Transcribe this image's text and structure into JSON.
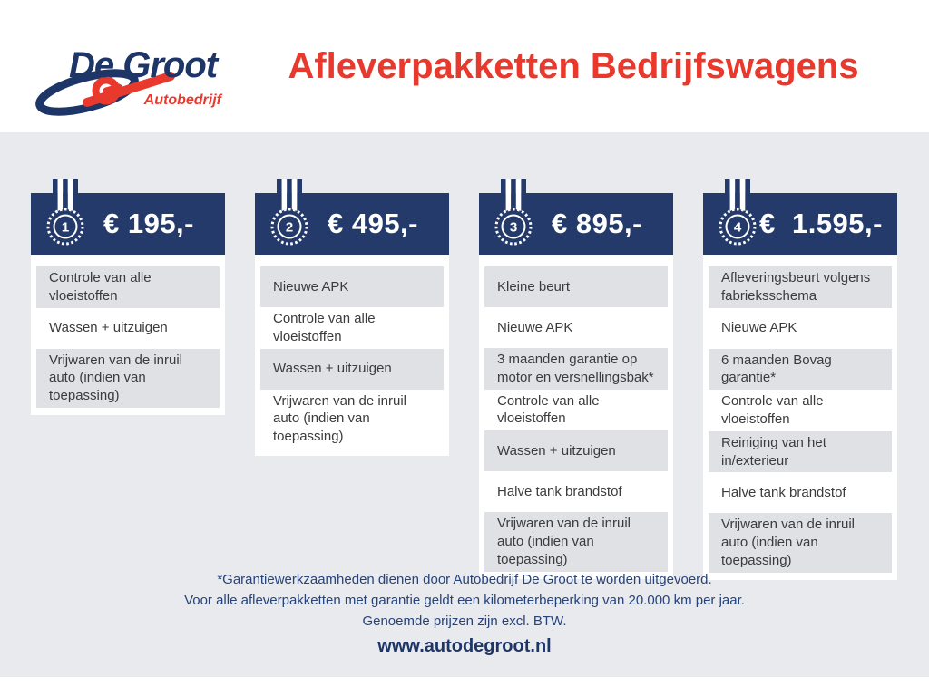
{
  "header": {
    "logo": {
      "name": "De Groot",
      "subtitle": "Autobedrijf"
    },
    "title": "Afleverpakketten Bedrijfswagens"
  },
  "packages": [
    {
      "badge": "1",
      "price": "€ 195,-",
      "items": [
        "Controle van alle vloeistoffen",
        "Wassen + uitzuigen",
        "Vrijwaren van de inruil auto (indien van toepassing)"
      ]
    },
    {
      "badge": "2",
      "price": "€ 495,-",
      "items": [
        "Nieuwe APK",
        "Controle van alle vloeistoffen",
        "Wassen + uitzuigen",
        "Vrijwaren van de inruil auto (indien van toepassing)"
      ]
    },
    {
      "badge": "3",
      "price": "€ 895,-",
      "items": [
        "Kleine beurt",
        "Nieuwe APK",
        "3 maanden garantie op motor en versnellingsbak*",
        "Controle van alle vloeistoffen",
        "Wassen + uitzuigen",
        "Halve tank brandstof",
        "Vrijwaren van de inruil auto (indien van toepassing)"
      ]
    },
    {
      "badge": "4",
      "price": "€  1.595,-",
      "items": [
        "Afleveringsbeurt volgens fabrieksschema",
        "Nieuwe APK",
        "6 maanden Bovag garantie*",
        "Controle van alle vloeistoffen",
        "Reiniging van het in/exterieur",
        "Halve tank brandstof",
        "Vrijwaren van de inruil auto (indien van toepassing)"
      ]
    }
  ],
  "footer": {
    "notes": [
      "*Garantiewerkzaamheden dienen door Autobedrijf De Groot te worden uitgevoerd.",
      "Voor alle afleverpakketten met garantie geldt een kilometerbeperking van 20.000 km per jaar.",
      "Genoemde prijzen zijn excl. BTW."
    ],
    "website": "www.autodegroot.nl"
  },
  "colors": {
    "navy": "#243a6b",
    "logo_navy": "#1e3567",
    "red": "#e8392c",
    "board_gray": "#e9eaee",
    "row_gray": "#dfe1e5",
    "text_dark": "#3b3b3d",
    "note_navy": "#26437a"
  }
}
